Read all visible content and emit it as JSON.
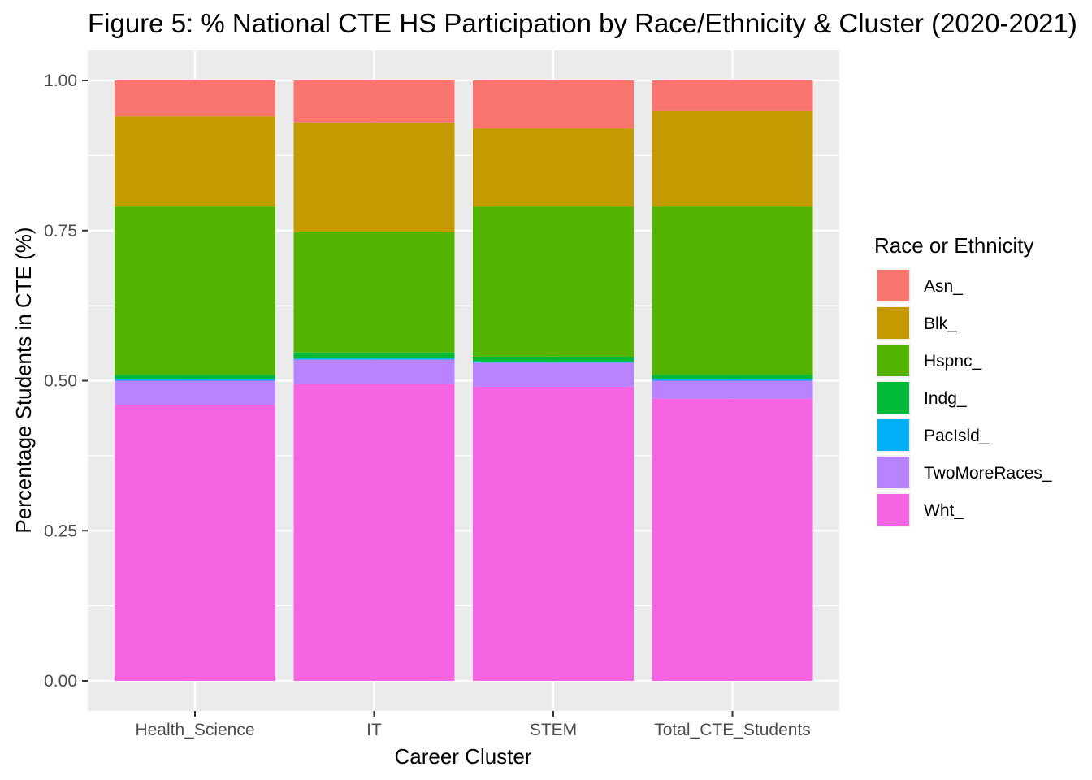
{
  "chart_data": {
    "type": "bar",
    "stacked": true,
    "title": "Figure 5: % National CTE HS Participation by Race/Ethnicity & Cluster (2020-2021)",
    "xlabel": "Career Cluster",
    "ylabel": "Percentage Students in CTE (%)",
    "ylim": [
      0,
      1
    ],
    "yticks": [
      "0.00",
      "0.25",
      "0.50",
      "0.75",
      "1.00"
    ],
    "categories": [
      "Health_Science",
      "IT",
      "STEM",
      "Total_CTE_Students"
    ],
    "legend_title": "Race or Ethnicity",
    "legend_position": "right",
    "grid": true,
    "series": [
      {
        "name": "Wht_",
        "color": "#F564E3",
        "values": [
          0.46,
          0.495,
          0.49,
          0.47
        ]
      },
      {
        "name": "TwoMoreRaces_",
        "color": "#B983FF",
        "values": [
          0.04,
          0.04,
          0.04,
          0.03
        ]
      },
      {
        "name": "PacIsld_",
        "color": "#00B0F6",
        "values": [
          0.003,
          0.002,
          0.002,
          0.003
        ]
      },
      {
        "name": "Indg_",
        "color": "#00BA38",
        "values": [
          0.007,
          0.01,
          0.008,
          0.007
        ]
      },
      {
        "name": "Hspnc_",
        "color": "#53B400",
        "values": [
          0.28,
          0.2,
          0.25,
          0.28
        ]
      },
      {
        "name": "Blk_",
        "color": "#C49A00",
        "values": [
          0.15,
          0.183,
          0.13,
          0.16
        ]
      },
      {
        "name": "Asn_",
        "color": "#F8766D",
        "values": [
          0.06,
          0.07,
          0.08,
          0.05
        ]
      }
    ],
    "legend_order": [
      "Asn_",
      "Blk_",
      "Hspnc_",
      "Indg_",
      "PacIsld_",
      "TwoMoreRaces_",
      "Wht_"
    ]
  }
}
